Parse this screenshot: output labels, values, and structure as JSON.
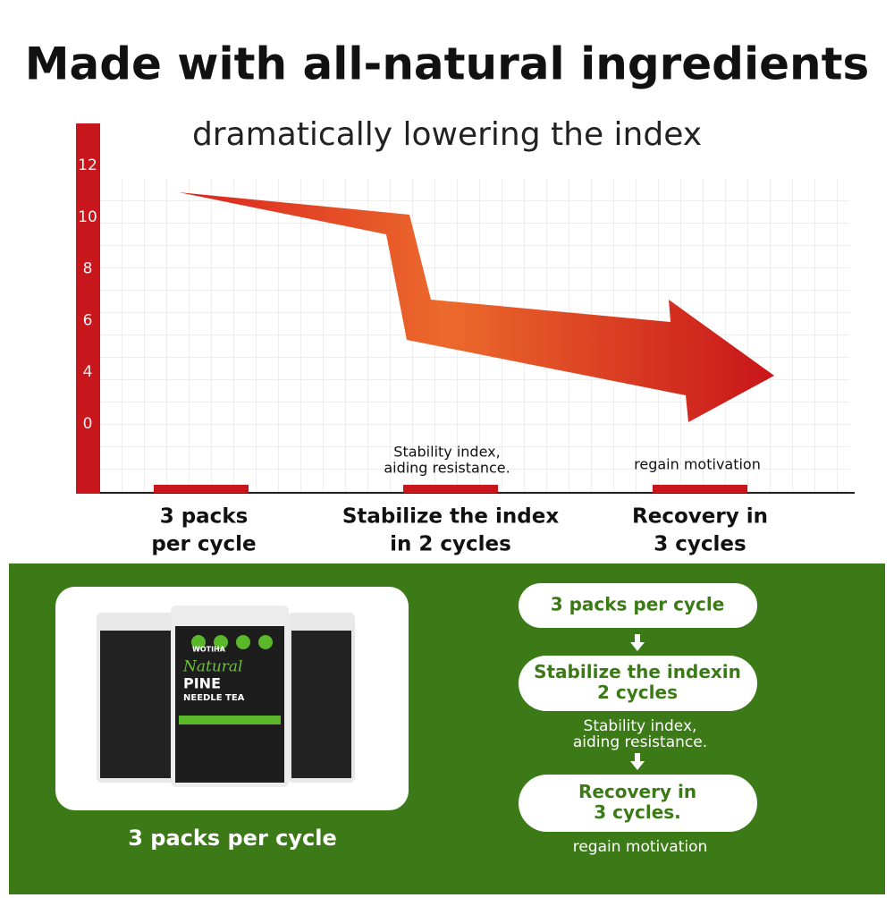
{
  "header": {
    "title": "Made with all-natural ingredients",
    "subtitle": "dramatically lowering the index"
  },
  "axis_labels": [
    "12",
    "10",
    "8",
    "6",
    "4",
    "0"
  ],
  "stages": [
    {
      "lines": [
        "3 packs",
        "per cycle"
      ]
    },
    {
      "note": [
        "Stability index,",
        "aiding resistance."
      ],
      "lines": [
        "Stabilize the index",
        "in 2 cycles"
      ]
    },
    {
      "note": [
        "regain motivation"
      ],
      "lines": [
        "Recovery in",
        "3 cycles"
      ]
    }
  ],
  "product": {
    "brand": "WOTIHA",
    "name": [
      "Natural",
      "PINE",
      "NEEDLE TEA"
    ],
    "caption": "3 packs per cycle"
  },
  "flow": [
    {
      "lines": [
        "3 packs per cycle"
      ]
    },
    {
      "lines": [
        "Stabilize the indexin",
        "2 cycles"
      ],
      "note": [
        "Stability index,",
        "aiding resistance."
      ]
    },
    {
      "lines": [
        "Recovery in",
        "3 cycles."
      ],
      "note": [
        "regain motivation"
      ]
    }
  ]
}
